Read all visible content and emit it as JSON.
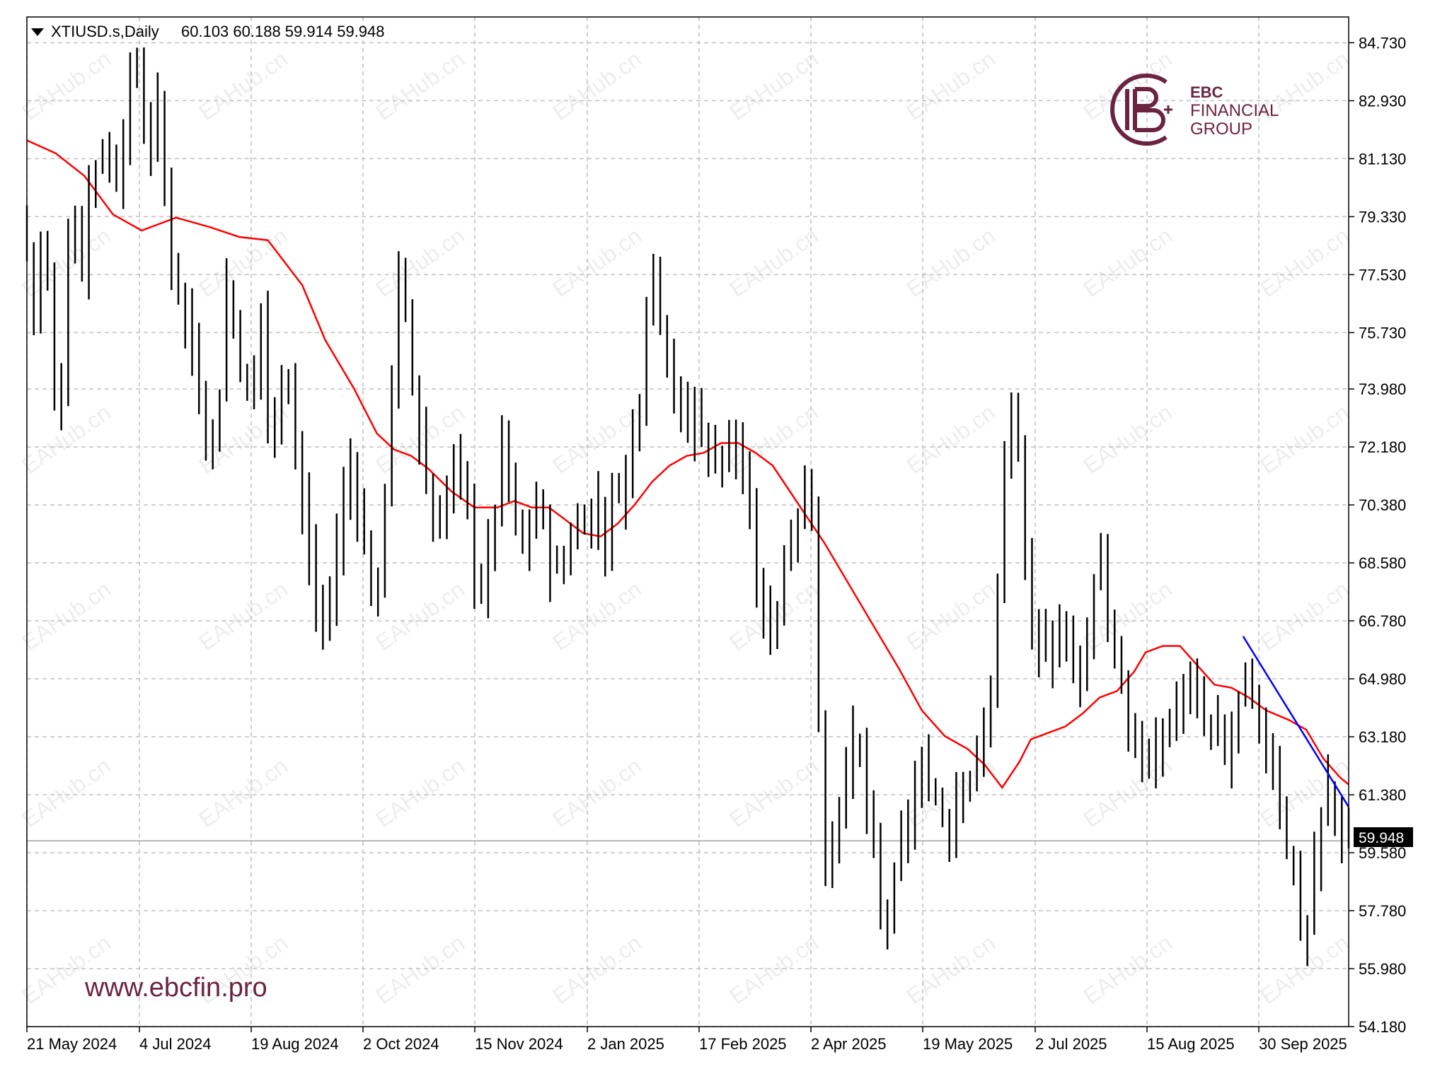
{
  "header": {
    "symbol": "XTIUSD.s,Daily",
    "ohlc": "60.103 60.188 59.914 59.948",
    "dropdown_icon": "triangle-down-icon"
  },
  "logo": {
    "icon": "ebc-monogram-icon",
    "brand": "EBC",
    "line1": "FINANCIAL",
    "line2": "GROUP",
    "color": "#6b2440"
  },
  "website": "www.ebcfin.pro",
  "watermark": "EAHub.cn",
  "colors": {
    "bars": "#000000",
    "ma": "#ff0000",
    "trend": "#0000ff",
    "grid": "#c0c0c0",
    "price_line": "#a0a0a0",
    "price_tag_bg": "#000000"
  },
  "chart_data": {
    "type": "bar",
    "subtype": "ohlc",
    "ylim": [
      54.18,
      85.53
    ],
    "y_ticks": [
      "84.730",
      "82.930",
      "81.130",
      "79.330",
      "77.530",
      "75.730",
      "73.980",
      "72.180",
      "70.380",
      "68.580",
      "66.780",
      "64.980",
      "63.180",
      "61.380",
      "59.580",
      "57.780",
      "55.980",
      "54.180"
    ],
    "x_ticks": [
      "21 May 2024",
      "4 Jul 2024",
      "19 Aug 2024",
      "2 Oct 2024",
      "15 Nov 2024",
      "2 Jan 2025",
      "17 Feb 2025",
      "2 Apr 2025",
      "19 May 2025",
      "2 Jul 2025",
      "15 Aug 2025",
      "30 Sep 2025"
    ],
    "current_price": "59.948",
    "series": [
      {
        "kind": "price",
        "points": [
          [
            0,
            79.4
          ],
          [
            10,
            77.6
          ],
          [
            15,
            75.2
          ],
          [
            20,
            80.5
          ],
          [
            28,
            74.0
          ],
          [
            35,
            73.1
          ],
          [
            40,
            78.0
          ],
          [
            45,
            79.5
          ],
          [
            55,
            77.8
          ],
          [
            60,
            80.6
          ],
          [
            72,
            81.4
          ],
          [
            85,
            80.6
          ],
          [
            95,
            83.4
          ],
          [
            103,
            84.0
          ],
          [
            110,
            81.3
          ],
          [
            120,
            82.6
          ],
          [
            130,
            78.4
          ],
          [
            140,
            77.0
          ],
          [
            150,
            75.0
          ],
          [
            160,
            73.2
          ],
          [
            170,
            72.0
          ],
          [
            180,
            77.1
          ],
          [
            190,
            75.5
          ],
          [
            200,
            73.0
          ],
          [
            210,
            76.5
          ],
          [
            220,
            71.2
          ],
          [
            230,
            75.8
          ],
          [
            240,
            72.5
          ],
          [
            250,
            69.0
          ],
          [
            260,
            66.5
          ],
          [
            270,
            67.4
          ],
          [
            280,
            70.3
          ],
          [
            290,
            71.8
          ],
          [
            300,
            69.0
          ],
          [
            310,
            66.8
          ],
          [
            320,
            72.0
          ],
          [
            330,
            77.5
          ],
          [
            340,
            75.0
          ],
          [
            350,
            72.0
          ],
          [
            360,
            69.5
          ],
          [
            370,
            70.5
          ],
          [
            380,
            72.0
          ],
          [
            390,
            70.0
          ],
          [
            400,
            67.5
          ],
          [
            410,
            69.0
          ],
          [
            420,
            72.3
          ],
          [
            430,
            70.0
          ],
          [
            440,
            68.8
          ],
          [
            450,
            70.6
          ],
          [
            460,
            69.0
          ],
          [
            470,
            68.0
          ],
          [
            480,
            69.4
          ],
          [
            490,
            70.0
          ],
          [
            500,
            70.3
          ],
          [
            510,
            69.5
          ],
          [
            520,
            71.0
          ],
          [
            530,
            71.5
          ],
          [
            540,
            74.0
          ],
          [
            550,
            78.4
          ],
          [
            560,
            76.0
          ],
          [
            570,
            74.0
          ],
          [
            580,
            72.5
          ],
          [
            590,
            73.6
          ],
          [
            600,
            71.8
          ],
          [
            610,
            72.0
          ],
          [
            620,
            72.8
          ],
          [
            630,
            71.0
          ],
          [
            640,
            68.6
          ],
          [
            650,
            66.3
          ],
          [
            660,
            67.3
          ],
          [
            670,
            69.5
          ],
          [
            680,
            70.3
          ],
          [
            690,
            71.0
          ],
          [
            700,
            58.5
          ],
          [
            710,
            60.5
          ],
          [
            720,
            62.5
          ],
          [
            730,
            63.0
          ],
          [
            740,
            60.5
          ],
          [
            750,
            57.5
          ],
          [
            760,
            58.0
          ],
          [
            770,
            60.2
          ],
          [
            780,
            61.5
          ],
          [
            790,
            62.0
          ],
          [
            800,
            61.2
          ],
          [
            810,
            60.2
          ],
          [
            820,
            62.3
          ],
          [
            830,
            62.0
          ],
          [
            840,
            63.0
          ],
          [
            850,
            66.5
          ],
          [
            860,
            73.0
          ],
          [
            870,
            72.6
          ],
          [
            880,
            65.5
          ],
          [
            890,
            66.3
          ],
          [
            900,
            65.9
          ],
          [
            910,
            67.0
          ],
          [
            920,
            65.0
          ],
          [
            930,
            66.0
          ],
          [
            940,
            69.6
          ],
          [
            950,
            66.2
          ],
          [
            960,
            64.3
          ],
          [
            970,
            63.0
          ],
          [
            980,
            62.5
          ],
          [
            990,
            62.8
          ],
          [
            1000,
            63.6
          ],
          [
            1010,
            64.3
          ],
          [
            1020,
            64.5
          ],
          [
            1030,
            63.6
          ],
          [
            1040,
            63.4
          ],
          [
            1050,
            62.5
          ],
          [
            1060,
            64.0
          ],
          [
            1070,
            65.0
          ],
          [
            1080,
            63.0
          ],
          [
            1090,
            62.7
          ],
          [
            1100,
            60.8
          ],
          [
            1110,
            58.8
          ],
          [
            1120,
            56.4
          ],
          [
            1130,
            60.0
          ],
          [
            1140,
            61.5
          ],
          [
            1150,
            60.7
          ],
          [
            1152,
            59.95
          ]
        ]
      },
      {
        "kind": "ma",
        "points": [
          [
            0,
            81.7
          ],
          [
            25,
            81.3
          ],
          [
            50,
            80.6
          ],
          [
            75,
            79.4
          ],
          [
            100,
            78.9
          ],
          [
            130,
            79.3
          ],
          [
            160,
            79.0
          ],
          [
            185,
            78.7
          ],
          [
            210,
            78.6
          ],
          [
            240,
            77.2
          ],
          [
            260,
            75.5
          ],
          [
            285,
            74.0
          ],
          [
            305,
            72.6
          ],
          [
            320,
            72.1
          ],
          [
            335,
            71.9
          ],
          [
            350,
            71.5
          ],
          [
            370,
            70.8
          ],
          [
            390,
            70.3
          ],
          [
            410,
            70.3
          ],
          [
            425,
            70.5
          ],
          [
            440,
            70.3
          ],
          [
            455,
            70.3
          ],
          [
            470,
            69.9
          ],
          [
            485,
            69.5
          ],
          [
            500,
            69.4
          ],
          [
            515,
            69.8
          ],
          [
            530,
            70.4
          ],
          [
            545,
            71.1
          ],
          [
            560,
            71.6
          ],
          [
            575,
            71.9
          ],
          [
            590,
            72.0
          ],
          [
            605,
            72.3
          ],
          [
            620,
            72.3
          ],
          [
            635,
            72.0
          ],
          [
            650,
            71.6
          ],
          [
            665,
            70.8
          ],
          [
            680,
            70.0
          ],
          [
            695,
            69.2
          ],
          [
            715,
            68.0
          ],
          [
            735,
            66.8
          ],
          [
            760,
            65.3
          ],
          [
            780,
            64.0
          ],
          [
            800,
            63.2
          ],
          [
            820,
            62.8
          ],
          [
            835,
            62.3
          ],
          [
            850,
            61.6
          ],
          [
            865,
            62.4
          ],
          [
            875,
            63.1
          ],
          [
            890,
            63.3
          ],
          [
            905,
            63.5
          ],
          [
            920,
            63.9
          ],
          [
            935,
            64.4
          ],
          [
            950,
            64.6
          ],
          [
            965,
            65.2
          ],
          [
            975,
            65.8
          ],
          [
            990,
            66.0
          ],
          [
            1005,
            66.0
          ],
          [
            1020,
            65.4
          ],
          [
            1035,
            64.8
          ],
          [
            1050,
            64.7
          ],
          [
            1065,
            64.4
          ],
          [
            1080,
            64.0
          ],
          [
            1100,
            63.7
          ],
          [
            1115,
            63.4
          ],
          [
            1130,
            62.5
          ],
          [
            1145,
            61.9
          ],
          [
            1152,
            61.7
          ]
        ]
      },
      {
        "kind": "trend",
        "points": [
          [
            1060,
            66.3
          ],
          [
            1152,
            61.0
          ]
        ]
      }
    ]
  }
}
